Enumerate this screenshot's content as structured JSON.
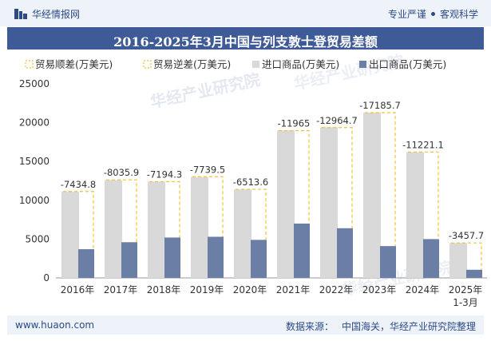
{
  "header": {
    "brand": "华经情报网",
    "tagline_left": "专业严谨",
    "tagline_right": "客观科学"
  },
  "title": "2016-2025年3月中国与列支敦士登贸易差额",
  "watermark": "华经产业研究院",
  "footer": {
    "site": "www.huaon.com",
    "source_label": "数据来源：",
    "source_value": "中国海关，华经产业研究院整理"
  },
  "colors": {
    "surplus": "#f3c131",
    "deficit": "#f3c131",
    "import": "#d9d9d9",
    "export": "#6b7ea5",
    "title_bg": "#3e5a97"
  },
  "chart_data": {
    "type": "bar",
    "categories": [
      "2016年",
      "2017年",
      "2018年",
      "2019年",
      "2020年",
      "2021年",
      "2022年",
      "2023年",
      "2024年",
      "2025年\n1-3月"
    ],
    "series": [
      {
        "name": "贸易顺差(万美元)",
        "values": [
          null,
          null,
          null,
          null,
          null,
          null,
          null,
          null,
          null,
          null
        ]
      },
      {
        "name": "贸易逆差(万美元)",
        "values": [
          -7434.8,
          -8035.9,
          -7194.3,
          -7739.5,
          -6513.6,
          -11965,
          -12964.7,
          -17185.7,
          -11221.1,
          -3457.7
        ]
      },
      {
        "name": "进口商品(万美元)",
        "values": [
          11100,
          12600,
          12400,
          13000,
          11400,
          19000,
          19400,
          21300,
          16200,
          4500
        ]
      },
      {
        "name": "出口商品(万美元)",
        "values": [
          3700,
          4600,
          5200,
          5300,
          4900,
          7000,
          6400,
          4100,
          5000,
          1050
        ]
      }
    ],
    "data_labels": [
      "-7434.8",
      "-8035.9",
      "-7194.3",
      "-7739.5",
      "-6513.6",
      "-11965",
      "-12964.7",
      "-17185.7",
      "-11221.1",
      "-3457.7"
    ],
    "yticks": [
      0,
      5000,
      10000,
      15000,
      20000,
      25000
    ],
    "ylim": [
      0,
      25000
    ],
    "legend_position": "top",
    "grid": false
  }
}
